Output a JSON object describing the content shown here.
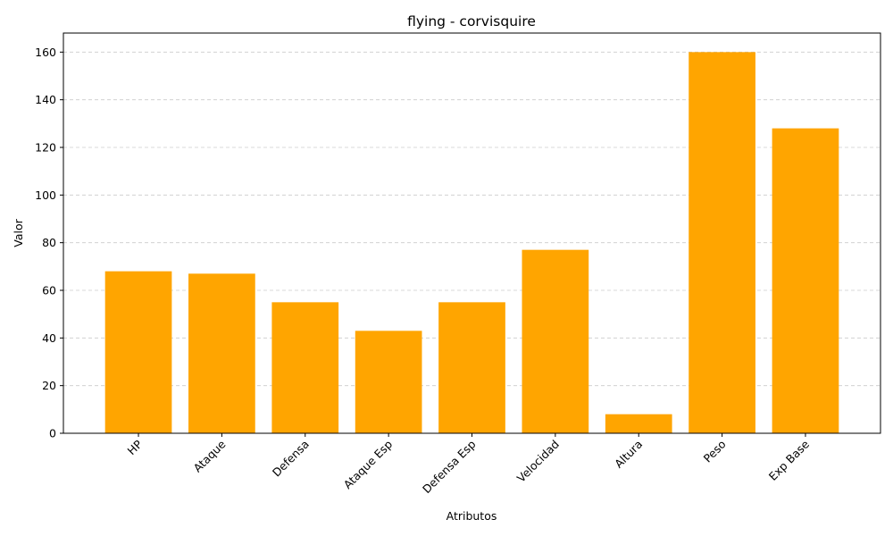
{
  "chart_data": {
    "type": "bar",
    "title": "flying - corvisquire",
    "xlabel": "Atributos",
    "ylabel": "Valor",
    "categories": [
      "HP",
      "Ataque",
      "Defensa",
      "Ataque Esp",
      "Defensa Esp",
      "Velocidad",
      "Altura",
      "Peso",
      "Exp Base"
    ],
    "values": [
      68,
      67,
      55,
      43,
      55,
      77,
      8,
      160,
      128
    ],
    "ylim": [
      0,
      168
    ],
    "yticks": [
      0,
      20,
      40,
      60,
      80,
      100,
      120,
      140,
      160
    ],
    "grid": "y-dashed",
    "bar_color": "#FFA500"
  }
}
